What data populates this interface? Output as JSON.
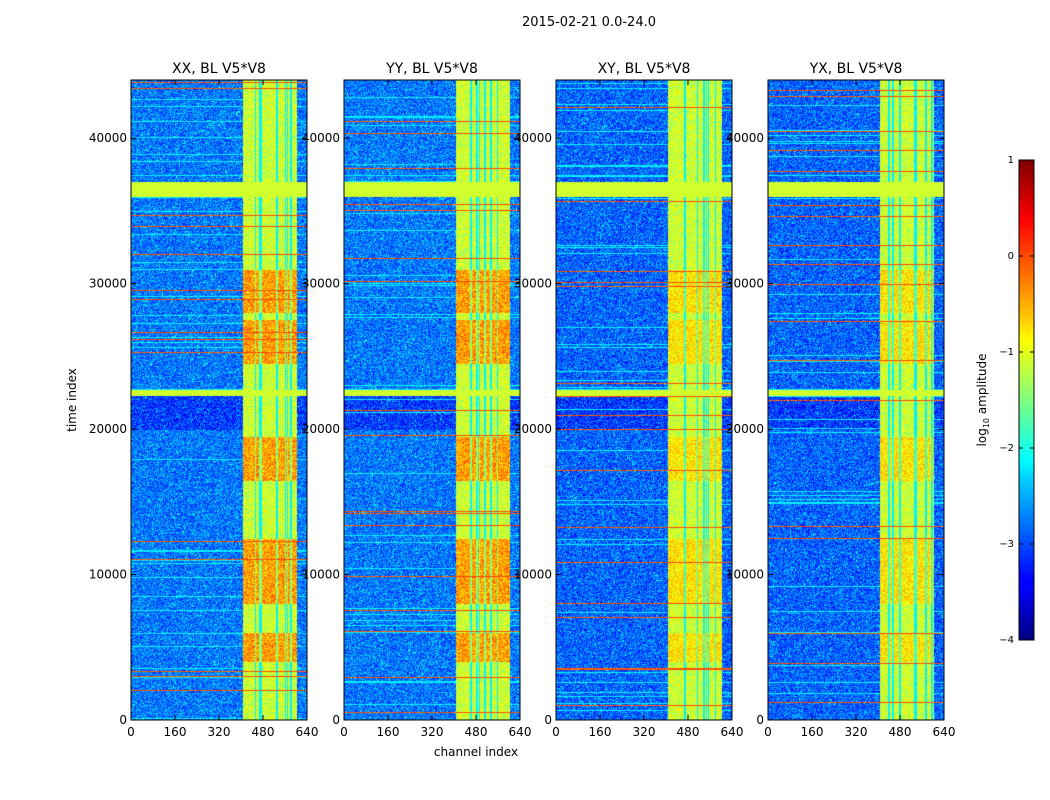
{
  "chart_data": {
    "type": "heatmap",
    "title": "2015-02-21 0.0-24.0",
    "xlabel": "channel index",
    "ylabel": "time index",
    "xlim": [
      0,
      640
    ],
    "ylim": [
      0,
      44000
    ],
    "x_ticks": [
      "0",
      "160",
      "320",
      "480",
      "640"
    ],
    "x_tick_values": [
      0,
      160,
      320,
      480,
      640
    ],
    "y_ticks": [
      "0",
      "10000",
      "20000",
      "30000",
      "40000"
    ],
    "y_tick_values": [
      0,
      10000,
      20000,
      30000,
      40000
    ],
    "panels": [
      {
        "title": "XX, BL V5*V8",
        "pol": "XX"
      },
      {
        "title": "YY, BL V5*V8",
        "pol": "YY"
      },
      {
        "title": "XY, BL V5*V8",
        "pol": "XY"
      },
      {
        "title": "YX, BL V5*V8",
        "pol": "YX"
      }
    ],
    "colorbar": {
      "label": "log10 amplitude",
      "range": [
        -4,
        1
      ],
      "ticks": [
        "1",
        "0",
        "−1",
        "−2",
        "−3",
        "−4"
      ],
      "tick_values": [
        1,
        0,
        -1,
        -2,
        -3,
        -4
      ],
      "colormap": "jet"
    },
    "bright_channel_band": [
      405,
      600
    ],
    "flagged_time_bands": [
      [
        36000,
        37000
      ],
      [
        22300,
        22700
      ]
    ]
  }
}
